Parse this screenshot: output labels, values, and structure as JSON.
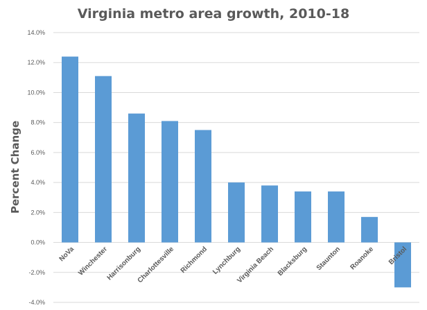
{
  "chart_data": {
    "type": "bar",
    "title": "Virginia metro area growth, 2010-18",
    "xlabel": "",
    "ylabel": "Percent Change",
    "categories": [
      "NoVa",
      "Winchester",
      "Harrisonburg",
      "Charlottesville",
      "Richmond",
      "Lynchburg",
      "Virginia Beach",
      "Blacksburg",
      "Staunton",
      "Roanoke",
      "Bristol"
    ],
    "values": [
      12.4,
      11.1,
      8.6,
      8.1,
      7.5,
      4.0,
      3.8,
      3.4,
      3.4,
      1.7,
      -3.0
    ],
    "ylim": [
      -4.0,
      14.0
    ],
    "yticks": [
      14.0,
      12.0,
      10.0,
      8.0,
      6.0,
      4.0,
      2.0,
      0.0,
      -2.0,
      -4.0
    ],
    "ytick_labels": [
      "14.0%",
      "12.0%",
      "10.0%",
      "8.0%",
      "6.0%",
      "4.0%",
      "2.0%",
      "0.0%",
      "-2.0%",
      "-4.0%"
    ],
    "grid": true,
    "legend": "none",
    "bar_color": "#5b9bd5"
  }
}
